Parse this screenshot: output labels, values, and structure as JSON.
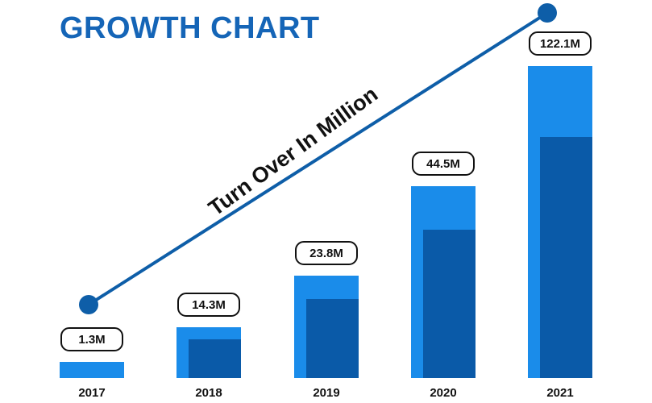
{
  "chart_data": {
    "type": "bar",
    "title": "GROWTH CHART",
    "annotation": "Turn Over In Million",
    "categories": [
      "2017",
      "2018",
      "2019",
      "2020",
      "2021"
    ],
    "value_labels": [
      "1.3M",
      "14.3M",
      "23.8M",
      "44.5M",
      "122.1M"
    ],
    "colors": {
      "bar_light": "#1a8cea",
      "bar_dark": "#0a5aa8",
      "trend_line": "#0e5ea8",
      "title": "#1565b7"
    },
    "trend_points": 2,
    "grid": false,
    "legend": "none"
  }
}
